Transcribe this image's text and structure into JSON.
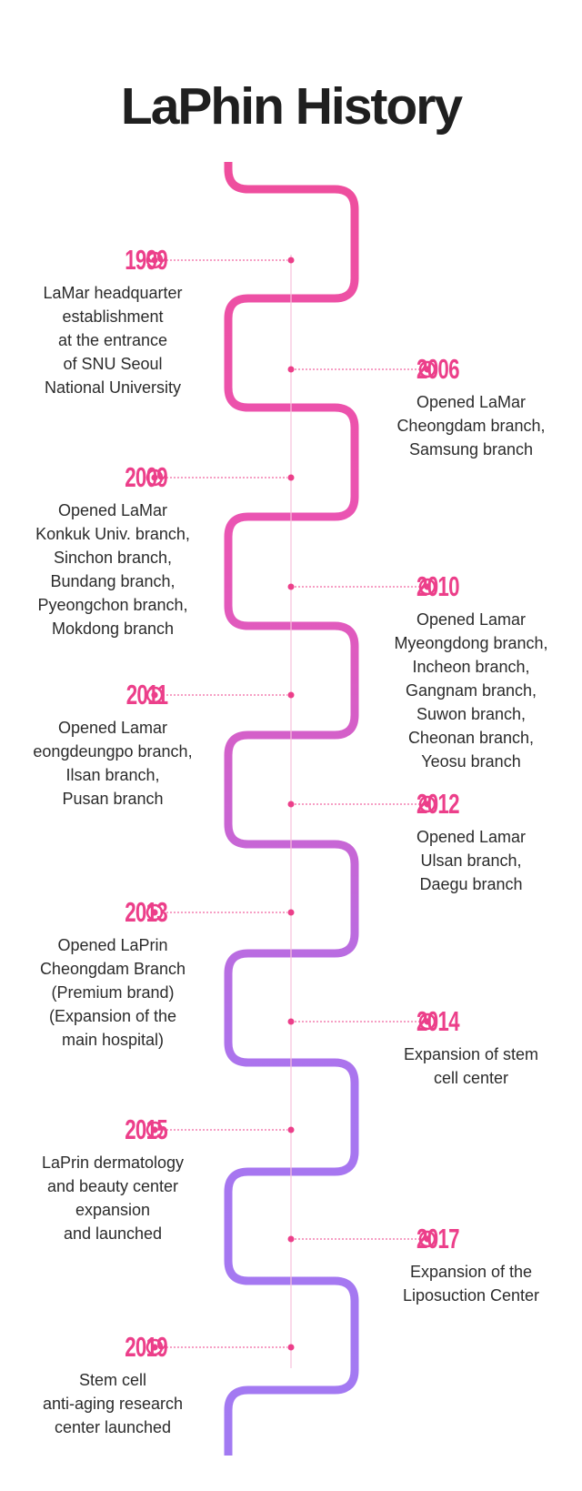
{
  "title": "LaPhin History",
  "colors": {
    "accent": "#ec3f8a",
    "snake_top": "#ef4d9c",
    "snake_bottom": "#a875f0",
    "title": "#1f1f1f",
    "text": "#2b2b2b"
  },
  "icons": {
    "year_marker": "target-icon",
    "timeline_node": "dot-icon"
  },
  "events": [
    {
      "year": "1999",
      "lines": [
        "LaMar headquarter",
        "establishment",
        "at the entrance",
        "of SNU Seoul",
        "National University"
      ]
    },
    {
      "year": "2006",
      "lines": [
        "Opened LaMar",
        "Cheongdam branch,",
        "Samsung branch"
      ]
    },
    {
      "year": "2009",
      "lines": [
        "Opened LaMar",
        "Konkuk Univ. branch,",
        "Sinchon branch,",
        "Bundang branch,",
        "Pyeongchon branch,",
        "Mokdong branch"
      ]
    },
    {
      "year": "2010",
      "lines": [
        "Opened Lamar",
        "Myeongdong branch,",
        "Incheon branch,",
        "Gangnam branch,",
        "Suwon branch,",
        "Cheonan branch,",
        "Yeosu branch"
      ]
    },
    {
      "year": "2011",
      "lines": [
        "Opened Lamar",
        "eongdeungpo branch,",
        "Ilsan branch,",
        "Pusan branch"
      ]
    },
    {
      "year": "2012",
      "lines": [
        "Opened Lamar",
        "Ulsan branch,",
        "Daegu branch"
      ]
    },
    {
      "year": "2013",
      "lines": [
        "Opened LaPrin",
        "Cheongdam Branch",
        "(Premium brand)",
        "(Expansion of the",
        "main hospital)"
      ]
    },
    {
      "year": "2014",
      "lines": [
        "Expansion of stem",
        "cell center"
      ]
    },
    {
      "year": "2015",
      "lines": [
        "LaPrin dermatology",
        "and beauty center",
        "expansion",
        "and launched"
      ]
    },
    {
      "year": "2017",
      "lines": [
        "Expansion of the",
        "Liposuction Center"
      ]
    },
    {
      "year": "2019",
      "lines": [
        "Stem cell",
        "anti-aging research",
        "center launched"
      ]
    }
  ]
}
